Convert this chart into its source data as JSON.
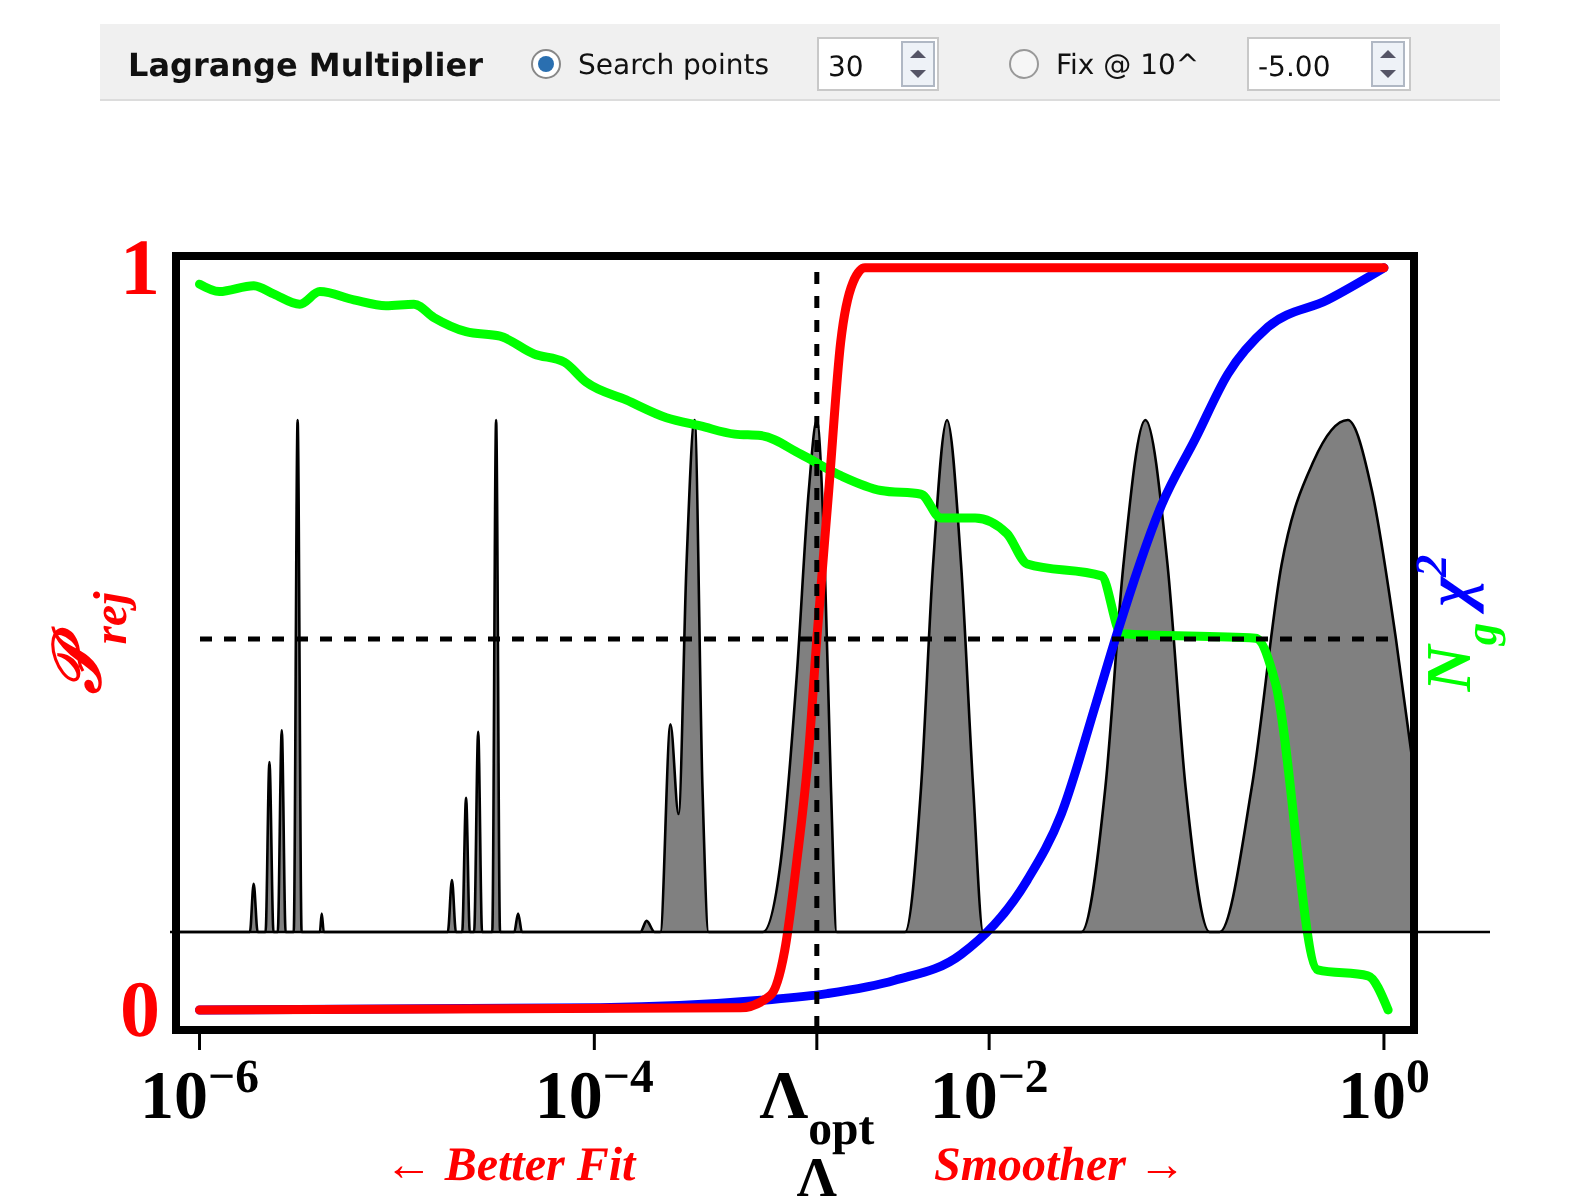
{
  "chart_data": {
    "type": "line",
    "xlabel": "Λ",
    "ylabel": "𝒫$_{rej}$",
    "y2label": "N$_{g}$ χ$^{2}$",
    "log": "x",
    "line_style": "solid",
    "xlim": [
      7.6e-07,
      1.42
    ],
    "ylim": [
      -0.027,
      1.016
    ],
    "xticks": [
      {
        "value": 1e-06,
        "label": "10$^{−6}$"
      },
      {
        "value": 0.0001,
        "label": "10$^{−4}$"
      },
      {
        "value": 0.00134,
        "label": "Λ$_{opt}$"
      },
      {
        "value": 0.01,
        "label": "10$^{−2}$"
      },
      {
        "value": 1,
        "label": "10$^{0}$"
      }
    ],
    "yticks": [
      0,
      1
    ],
    "ref_lines": [
      {
        "axis": "x",
        "value": 0.00134,
        "line_style": "dashed",
        "color": "#000000"
      },
      {
        "axis": "y",
        "value": 0.5,
        "line_style": "dashed",
        "color": "#000000"
      },
      {
        "axis": "y",
        "value": 0.105,
        "line_style": "solid",
        "color": "#000000"
      }
    ],
    "annotations": [
      "Lagrange Multiplier",
      "Search points",
      "30",
      "Fix @ 10^",
      "-5.00",
      "← Better Fit",
      "Smoother →"
    ],
    "series": [
      {
        "color": "#00ff00",
        "x": [
          1e-06,
          1.26e-06,
          1.88e-06,
          2.37e-06,
          3.22e-06,
          4.07e-06,
          6.05e-06,
          8.8e-06,
          1.22e-05,
          1.54e-05,
          2.24e-05,
          3.33e-05,
          4.95e-05,
          7.04e-05,
          9.1e-05,
          0.000145,
          0.000232,
          0.000345,
          0.000514,
          0.000697,
          0.00111,
          0.00177,
          0.00283,
          0.00452,
          0.0057,
          0.00849,
          0.0123,
          0.0156,
          0.0371,
          0.0468,
          0.224,
          0.283,
          0.462,
          0.83,
          1.05
        ],
        "values": [
          0.978,
          0.968,
          0.976,
          0.965,
          0.951,
          0.968,
          0.957,
          0.949,
          0.951,
          0.933,
          0.914,
          0.908,
          0.884,
          0.873,
          0.846,
          0.822,
          0.798,
          0.787,
          0.776,
          0.774,
          0.749,
          0.72,
          0.7,
          0.695,
          0.663,
          0.663,
          0.642,
          0.601,
          0.585,
          0.507,
          0.501,
          0.439,
          0.054,
          0.046,
          0
        ]
      },
      {
        "color": "#0000ff",
        "x": [
          1e-06,
          0.000107,
          0.000697,
          0.00151,
          0.00333,
          0.00721,
          0.0156,
          0.0232,
          0.0345,
          0.0436,
          0.0746,
          0.111,
          0.162,
          0.258,
          0.52,
          1
        ],
        "values": [
          0,
          0.003,
          0.013,
          0.022,
          0.04,
          0.075,
          0.175,
          0.264,
          0.41,
          0.5,
          0.68,
          0.77,
          0.857,
          0.92,
          0.957,
          1
        ]
      },
      {
        "color": "#ff0000",
        "x": [
          1e-06,
          0.000551,
          0.000782,
          0.000921,
          0.00106,
          0.00122,
          0.00134,
          0.00154,
          0.00177,
          0.00204,
          0.00235,
          1
        ],
        "values": [
          0,
          0.003,
          0.02,
          0.08,
          0.2,
          0.35,
          0.5,
          0.7,
          0.9,
          0.98,
          1,
          1
        ]
      },
      {
        "type": "area",
        "color": "#808080",
        "x": [
          7.6e-07,
          1.49e-06,
          1.8e-06,
          1.88e-06,
          1.97e-06,
          2.16e-06,
          2.26e-06,
          2.37e-06,
          2.49e-06,
          2.61e-06,
          2.73e-06,
          3e-06,
          3.14e-06,
          3.29e-06,
          4.07e-06,
          4.16e-06,
          4.26e-06,
          1.81e-05,
          1.9e-05,
          1.99e-05,
          2.14e-05,
          2.24e-05,
          2.34e-05,
          2.46e-05,
          2.58e-05,
          2.7e-05,
          3.04e-05,
          3.18e-05,
          3.33e-05,
          3.93e-05,
          4.11e-05,
          4.3e-05,
          0.000171,
          0.000184,
          0.000202,
          0.000216,
          0.000243,
          0.000267,
          0.000293,
          0.000322,
          0.000353,
          0.000379,
          0.000713,
          0.000879,
          0.00106,
          0.00122,
          0.00134,
          0.00147,
          0.00158,
          0.00169,
          0.00375,
          0.00452,
          0.0052,
          0.00612,
          0.00721,
          0.0083,
          0.00933,
          0.0293,
          0.0388,
          0.0479,
          0.0619,
          0.0801,
          0.0989,
          0.131,
          0.147,
          0.214,
          0.303,
          0.441,
          0.656,
          0.869,
          1.15,
          1.42
        ],
        "values": [
          0.105,
          0.105,
          0.105,
          0.17,
          0.105,
          0.105,
          0.334,
          0.105,
          0.105,
          0.377,
          0.105,
          0.105,
          0.795,
          0.105,
          0.105,
          0.13,
          0.105,
          0.105,
          0.175,
          0.105,
          0.105,
          0.286,
          0.105,
          0.105,
          0.375,
          0.105,
          0.105,
          0.795,
          0.105,
          0.105,
          0.13,
          0.105,
          0.105,
          0.12,
          0.105,
          0.105,
          0.385,
          0.264,
          0.6,
          0.795,
          0.3,
          0.105,
          0.105,
          0.2,
          0.45,
          0.7,
          0.795,
          0.6,
          0.3,
          0.105,
          0.105,
          0.3,
          0.6,
          0.795,
          0.6,
          0.3,
          0.105,
          0.105,
          0.3,
          0.6,
          0.795,
          0.6,
          0.3,
          0.105,
          0.105,
          0.3,
          0.6,
          0.74,
          0.795,
          0.7,
          0.5,
          0.32
        ]
      }
    ]
  }
}
